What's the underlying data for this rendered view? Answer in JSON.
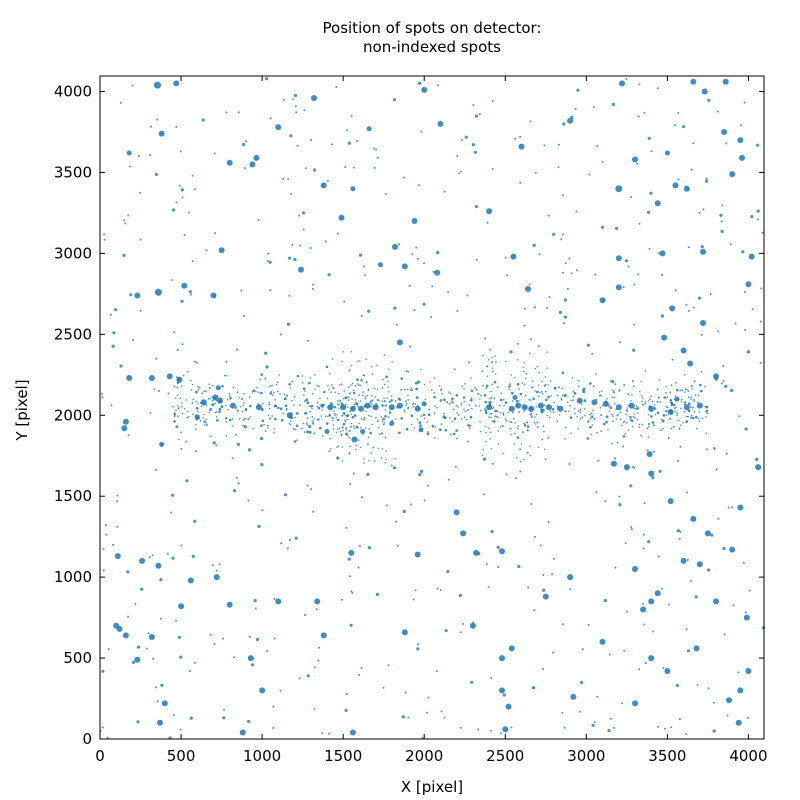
{
  "chart_data": {
    "type": "scatter",
    "title": "Position of spots on detector:",
    "subtitle": "non-indexed spots",
    "xlabel": "X [pixel]",
    "ylabel": "Y [pixel]",
    "xlim": [
      0,
      4096
    ],
    "ylim": [
      0,
      4096
    ],
    "x_ticks": [
      0,
      500,
      1000,
      1500,
      2000,
      2500,
      3000,
      3500,
      4000
    ],
    "y_ticks": [
      0,
      500,
      1000,
      1500,
      2000,
      2500,
      3000,
      3500,
      4000
    ],
    "x_tick_labels": [
      "0",
      "500",
      "1000",
      "1500",
      "2000",
      "2500",
      "3000",
      "3500",
      "4000"
    ],
    "y_tick_labels": [
      "0",
      "500",
      "1000",
      "1500",
      "2000",
      "2500",
      "3000",
      "3500",
      "4000"
    ],
    "grid": false,
    "marker_color": "#1f77b4",
    "points": [
      [
        355,
        4040,
        3.5
      ],
      [
        470,
        4050,
        3
      ],
      [
        965,
        3590,
        3
      ],
      [
        1320,
        3960,
        3
      ],
      [
        2100,
        3800,
        3
      ],
      [
        2600,
        3660,
        3
      ],
      [
        3200,
        3400,
        3.5
      ],
      [
        3550,
        3420,
        3
      ],
      [
        3620,
        3400,
        3
      ],
      [
        3900,
        3490,
        3
      ],
      [
        3850,
        3750,
        3
      ],
      [
        3950,
        3700,
        3
      ],
      [
        3300,
        3580,
        3
      ],
      [
        3500,
        3620,
        2.5
      ],
      [
        3440,
        3310,
        3
      ],
      [
        1100,
        3780,
        3
      ],
      [
        800,
        3560,
        3
      ],
      [
        940,
        3550,
        3
      ],
      [
        2900,
        3820,
        3
      ],
      [
        3220,
        4050,
        3
      ],
      [
        3860,
        4060,
        3
      ],
      [
        3960,
        3590,
        3
      ],
      [
        1660,
        3770,
        2.5
      ],
      [
        2000,
        4010,
        3
      ],
      [
        380,
        3740,
        3
      ],
      [
        180,
        3620,
        2.5
      ],
      [
        1380,
        3420,
        3
      ],
      [
        1560,
        3400,
        2.5
      ],
      [
        1240,
        2900,
        3
      ],
      [
        1880,
        2920,
        3
      ],
      [
        1820,
        3040,
        3
      ],
      [
        1490,
        3220,
        3
      ],
      [
        1940,
        3200,
        3
      ],
      [
        2400,
        3260,
        3
      ],
      [
        2550,
        2980,
        3
      ],
      [
        1730,
        2930,
        2.5
      ],
      [
        2080,
        2880,
        3
      ],
      [
        2640,
        2780,
        3
      ],
      [
        3200,
        2970,
        3
      ],
      [
        3470,
        3000,
        3
      ],
      [
        3720,
        3010,
        3
      ],
      [
        4020,
        2980,
        3
      ],
      [
        4000,
        2810,
        3
      ],
      [
        3200,
        2790,
        3
      ],
      [
        3100,
        2710,
        3
      ],
      [
        520,
        2800,
        3
      ],
      [
        360,
        2760,
        3.5
      ],
      [
        700,
        2740,
        3
      ],
      [
        750,
        3020,
        3
      ],
      [
        230,
        2740,
        3
      ],
      [
        320,
        2230,
        3
      ],
      [
        180,
        2230,
        3
      ],
      [
        1170,
        2000,
        3
      ],
      [
        980,
        2050,
        3
      ],
      [
        640,
        2080,
        3
      ],
      [
        740,
        2090,
        3
      ],
      [
        820,
        2060,
        3
      ],
      [
        1420,
        2050,
        3
      ],
      [
        1500,
        2050,
        3
      ],
      [
        1560,
        2040,
        3
      ],
      [
        1610,
        2040,
        3
      ],
      [
        1650,
        2060,
        3
      ],
      [
        1700,
        2050,
        3
      ],
      [
        1800,
        2050,
        3
      ],
      [
        1850,
        2060,
        3
      ],
      [
        1960,
        2040,
        3
      ],
      [
        2400,
        2050,
        3
      ],
      [
        2540,
        2040,
        3
      ],
      [
        2580,
        2060,
        3
      ],
      [
        2620,
        2050,
        3
      ],
      [
        2660,
        2040,
        3
      ],
      [
        2720,
        2060,
        3
      ],
      [
        2770,
        2050,
        3
      ],
      [
        2840,
        2040,
        3
      ],
      [
        2960,
        2090,
        3
      ],
      [
        3050,
        2080,
        3
      ],
      [
        3120,
        2070,
        3
      ],
      [
        3200,
        2050,
        3
      ],
      [
        3280,
        2060,
        3
      ],
      [
        3400,
        2040,
        3
      ],
      [
        3520,
        2020,
        3
      ],
      [
        3620,
        2050,
        3
      ],
      [
        3700,
        2060,
        3
      ],
      [
        3800,
        2240,
        3
      ],
      [
        3560,
        2100,
        2.5
      ],
      [
        2560,
        2110,
        2.5
      ],
      [
        2000,
        2070,
        2.5
      ],
      [
        1850,
        2450,
        3
      ],
      [
        1570,
        1850,
        3
      ],
      [
        1400,
        1900,
        2.5
      ],
      [
        1620,
        1900,
        2.5
      ],
      [
        1800,
        1950,
        2.5
      ],
      [
        1980,
        1910,
        2.5
      ],
      [
        490,
        2220,
        3
      ],
      [
        430,
        2240,
        3
      ],
      [
        730,
        2170,
        2.5
      ],
      [
        380,
        1820,
        2.5
      ],
      [
        150,
        1920,
        3
      ],
      [
        160,
        1960,
        3
      ],
      [
        600,
        1990,
        2.5
      ],
      [
        710,
        2110,
        3
      ],
      [
        3480,
        2480,
        3
      ],
      [
        3530,
        2660,
        3
      ],
      [
        3600,
        2400,
        3
      ],
      [
        3640,
        2320,
        3
      ],
      [
        3720,
        2570,
        3
      ],
      [
        3390,
        1760,
        3
      ],
      [
        3400,
        1640,
        3
      ],
      [
        3170,
        1700,
        3
      ],
      [
        3250,
        1680,
        3
      ],
      [
        3520,
        1470,
        3
      ],
      [
        3660,
        1360,
        3
      ],
      [
        3750,
        1270,
        3
      ],
      [
        3900,
        1170,
        3
      ],
      [
        3600,
        1100,
        3
      ],
      [
        3300,
        1050,
        3
      ],
      [
        3400,
        850,
        3
      ],
      [
        3350,
        800,
        3
      ],
      [
        3800,
        850,
        3
      ],
      [
        3990,
        750,
        3
      ],
      [
        3400,
        500,
        3
      ],
      [
        3500,
        420,
        3
      ],
      [
        3680,
        560,
        3
      ],
      [
        4000,
        420,
        3
      ],
      [
        3940,
        100,
        3
      ],
      [
        4060,
        1680,
        3
      ],
      [
        2240,
        1270,
        3
      ],
      [
        1550,
        1150,
        3
      ],
      [
        1960,
        1140,
        3
      ],
      [
        2320,
        1150,
        3
      ],
      [
        2480,
        1160,
        3
      ],
      [
        2900,
        1000,
        3
      ],
      [
        2750,
        880,
        3
      ],
      [
        2540,
        560,
        3
      ],
      [
        2480,
        500,
        3
      ],
      [
        2300,
        700,
        3
      ],
      [
        1880,
        660,
        3
      ],
      [
        1380,
        640,
        3
      ],
      [
        1340,
        850,
        3
      ],
      [
        1100,
        850,
        3
      ],
      [
        720,
        1000,
        3
      ],
      [
        800,
        830,
        3
      ],
      [
        500,
        820,
        3
      ],
      [
        560,
        980,
        3
      ],
      [
        360,
        1070,
        3
      ],
      [
        110,
        1130,
        3
      ],
      [
        260,
        1100,
        3
      ],
      [
        100,
        700,
        3
      ],
      [
        120,
        680,
        3
      ],
      [
        160,
        640,
        3
      ],
      [
        320,
        630,
        3
      ],
      [
        230,
        490,
        3
      ],
      [
        370,
        100,
        3
      ],
      [
        400,
        220,
        3
      ],
      [
        880,
        40,
        3
      ],
      [
        1000,
        300,
        3
      ],
      [
        930,
        500,
        3
      ],
      [
        1560,
        40,
        3
      ],
      [
        2480,
        300,
        3
      ],
      [
        2520,
        200,
        3
      ],
      [
        2500,
        60,
        3
      ],
      [
        2920,
        260,
        3
      ],
      [
        3300,
        220,
        3
      ],
      [
        3880,
        240,
        3
      ],
      [
        3950,
        300,
        3
      ],
      [
        3100,
        600,
        3
      ],
      [
        3440,
        900,
        3
      ],
      [
        3700,
        1080,
        3
      ],
      [
        3950,
        1430,
        3
      ],
      [
        2200,
        1400,
        3
      ],
      [
        3660,
        4060,
        3
      ],
      [
        3730,
        4000,
        3
      ]
    ]
  }
}
